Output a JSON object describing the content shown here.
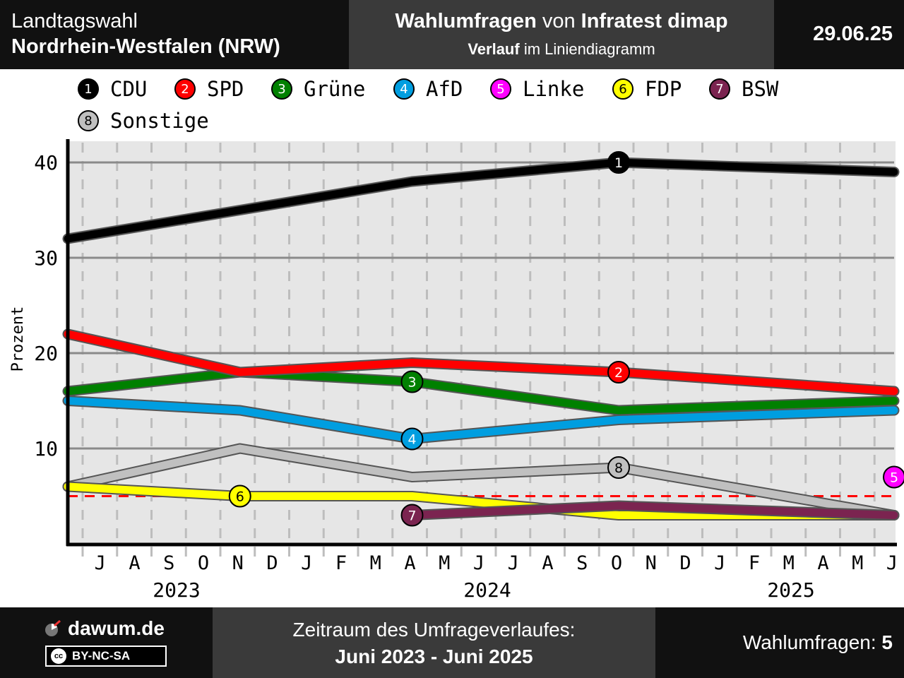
{
  "header": {
    "left_line1": "Landtagswahl",
    "left_line2": "Nordrhein-Westfalen (NRW)",
    "mid_line1_bold_a": "Wahlumfragen",
    "mid_line1_plain": " von ",
    "mid_line1_bold_b": "Infratest dimap",
    "mid_line2_bold": "Verlauf",
    "mid_line2_plain": " im Liniendiagramm",
    "date": "29.06.25"
  },
  "legend": [
    {
      "num": "1",
      "name": "CDU",
      "color": "#000000",
      "text_color": "#ffffff"
    },
    {
      "num": "2",
      "name": "SPD",
      "color": "#ff0000",
      "text_color": "#ffffff"
    },
    {
      "num": "3",
      "name": "Grüne",
      "color": "#008000",
      "text_color": "#ffffff"
    },
    {
      "num": "4",
      "name": "AfD",
      "color": "#009ee0",
      "text_color": "#ffffff"
    },
    {
      "num": "5",
      "name": "Linke",
      "color": "#ff00ff",
      "text_color": "#ffffff"
    },
    {
      "num": "6",
      "name": "FDP",
      "color": "#ffff00",
      "text_color": "#000000"
    },
    {
      "num": "7",
      "name": "BSW",
      "color": "#7b2450",
      "text_color": "#ffffff"
    },
    {
      "num": "8",
      "name": "Sonstige",
      "color": "#c0c0c0",
      "text_color": "#000000"
    }
  ],
  "chart_data": {
    "type": "line",
    "ylabel": "Prozent",
    "ylim": [
      0,
      42
    ],
    "y_ticks": [
      10,
      20,
      30,
      40
    ],
    "threshold": 5,
    "month_labels": [
      "J",
      "A",
      "S",
      "O",
      "N",
      "D",
      "J",
      "F",
      "M",
      "A",
      "M",
      "J",
      "J",
      "A",
      "S",
      "O",
      "N",
      "D",
      "J",
      "F",
      "M",
      "A",
      "M",
      "J"
    ],
    "years": [
      "2023",
      "2024",
      "2025"
    ],
    "x_range": [
      "2023-06",
      "2025-06"
    ],
    "series": [
      {
        "name": "Sonstige",
        "color": "#c0c0c0",
        "marker_index": 3,
        "marker": "8",
        "points": [
          [
            "2023-06",
            6
          ],
          [
            "2023-11",
            10
          ],
          [
            "2024-04",
            7
          ],
          [
            "2024-10",
            8
          ],
          [
            "2025-06",
            3
          ]
        ]
      },
      {
        "name": "FDP",
        "color": "#ffff00",
        "marker_index": 1,
        "marker": "6",
        "points": [
          [
            "2023-06",
            6
          ],
          [
            "2023-11",
            5
          ],
          [
            "2024-04",
            5
          ],
          [
            "2024-10",
            3
          ],
          [
            "2025-06",
            3
          ]
        ]
      },
      {
        "name": "BSW",
        "color": "#7b2450",
        "marker_index": 0,
        "marker": "7",
        "points": [
          [
            "2024-04",
            3
          ],
          [
            "2024-10",
            4
          ],
          [
            "2025-06",
            3
          ]
        ]
      },
      {
        "name": "AfD",
        "color": "#009ee0",
        "marker_index": 2,
        "marker": "4",
        "points": [
          [
            "2023-06",
            15
          ],
          [
            "2023-11",
            14
          ],
          [
            "2024-04",
            11
          ],
          [
            "2024-10",
            13
          ],
          [
            "2025-06",
            14
          ]
        ]
      },
      {
        "name": "Grüne",
        "color": "#008000",
        "marker_index": 2,
        "marker": "3",
        "points": [
          [
            "2023-06",
            16
          ],
          [
            "2023-11",
            18
          ],
          [
            "2024-04",
            17
          ],
          [
            "2024-10",
            14
          ],
          [
            "2025-06",
            15
          ]
        ]
      },
      {
        "name": "SPD",
        "color": "#ff0000",
        "marker_index": 3,
        "marker": "2",
        "points": [
          [
            "2023-06",
            22
          ],
          [
            "2023-11",
            18
          ],
          [
            "2024-04",
            19
          ],
          [
            "2024-10",
            18
          ],
          [
            "2025-06",
            16
          ]
        ]
      },
      {
        "name": "CDU",
        "color": "#000000",
        "marker_index": 3,
        "marker": "1",
        "points": [
          [
            "2023-06",
            32
          ],
          [
            "2023-11",
            35
          ],
          [
            "2024-04",
            38
          ],
          [
            "2024-10",
            40
          ],
          [
            "2025-06",
            39
          ]
        ]
      },
      {
        "name": "Linke",
        "color": "#ff00ff",
        "marker_index": 0,
        "marker": "5",
        "points": [
          [
            "2025-06",
            7
          ]
        ]
      }
    ]
  },
  "footer": {
    "brand": "dawum.de",
    "license": "BY-NC-SA",
    "period_label": "Zeitraum des Umfrageverlaufes:",
    "period_value": "Juni 2023 - Juni 2025",
    "polls_label": "Wahlumfragen: ",
    "polls_count": "5"
  }
}
